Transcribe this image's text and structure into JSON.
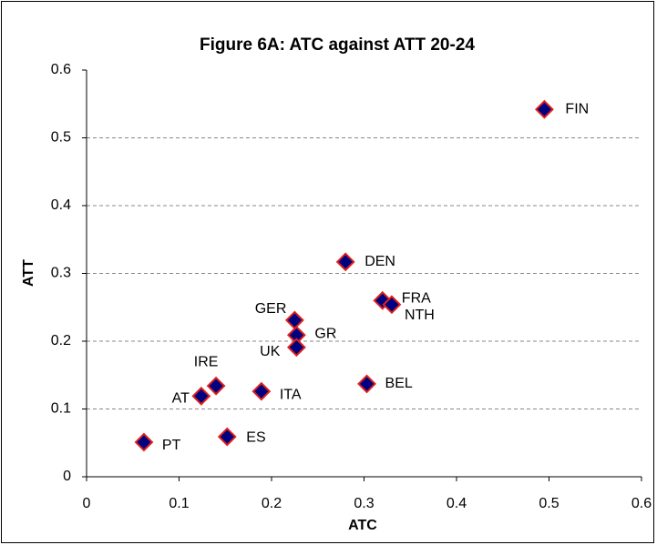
{
  "chart_data": {
    "type": "scatter",
    "title": "Figure 6A: ATC against ATT 20-24",
    "x_label": "ATC",
    "y_label": "ATT",
    "point_labels": [
      "FIN",
      "DEN",
      "FRA",
      "NTH",
      "GER",
      "GR",
      "UK",
      "BEL",
      "IRE",
      "ITA",
      "AT",
      "ES",
      "PT"
    ],
    "x": [
      0.495,
      0.28,
      0.32,
      0.33,
      0.225,
      0.227,
      0.227,
      0.303,
      0.14,
      0.189,
      0.124,
      0.152,
      0.062
    ],
    "values": [
      0.542,
      0.317,
      0.26,
      0.254,
      0.231,
      0.209,
      0.191,
      0.137,
      0.134,
      0.126,
      0.119,
      0.059,
      0.051
    ],
    "xlim": [
      0,
      0.6
    ],
    "xticks": [
      0,
      0.1,
      0.2,
      0.3,
      0.4,
      0.5,
      0.6
    ],
    "ylim": [
      0,
      0.6
    ],
    "yticks": [
      0,
      0.1,
      0.2,
      0.3,
      0.4,
      0.5,
      0.6
    ],
    "grid": true,
    "color": "#000080",
    "edge_color": "#e0201b"
  }
}
